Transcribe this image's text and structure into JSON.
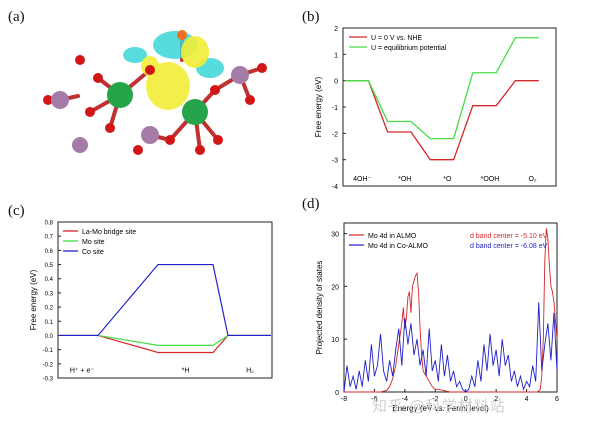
{
  "panel_labels": {
    "a": "(a)",
    "b": "(b)",
    "c": "(c)",
    "d": "(d)"
  },
  "watermark": "知乎 @科学材料站",
  "colors": {
    "red": "#d62728",
    "green": "#2ca02c",
    "green_light": "#44dd44",
    "blue": "#1f1fcc",
    "mo_green": "#26a44a",
    "la_purple": "#a57ba8",
    "o_red": "#d01616",
    "iso_yellow": "#f2ee37",
    "iso_cyan": "#39d6d6"
  },
  "structure_icon": "crystal-structure-charge-density",
  "chart_data": [
    {
      "id": "b",
      "type": "line",
      "ylabel": "Free energy (eV)",
      "ylim": [
        -4,
        2
      ],
      "yticks": [
        "2",
        "1",
        "0",
        "-1",
        "-2",
        "-3",
        "-4"
      ],
      "categories": [
        "4OH⁻",
        "*OH",
        "*O",
        "*OOH",
        "O₂"
      ],
      "legend_position": "top-left",
      "series": [
        {
          "name": "U = 0 V vs. NHE",
          "color": "#d62728",
          "values": [
            0,
            -1.95,
            -3.0,
            -0.95,
            0
          ]
        },
        {
          "name": "U = equilibrium potential",
          "color": "#44dd44",
          "values": [
            0,
            -1.55,
            -2.2,
            0.3,
            1.63
          ]
        }
      ]
    },
    {
      "id": "c",
      "type": "line",
      "ylabel": "Free energy (eV)",
      "ylim": [
        -0.3,
        0.8
      ],
      "yticks": [
        "0.8",
        "0.7",
        "0.6",
        "0.5",
        "0.4",
        "0.3",
        "0.2",
        "0.1",
        "0.0",
        "-0.1",
        "-0.2",
        "-0.3"
      ],
      "categories": [
        "H⁺ + e⁻",
        "*H",
        "H₂"
      ],
      "legend_position": "top-left",
      "series": [
        {
          "name": "La-Mo bridge site",
          "color": "#d62728",
          "values": [
            0,
            -0.12,
            0
          ]
        },
        {
          "name": "Mo site",
          "color": "#44dd44",
          "values": [
            0,
            -0.07,
            0
          ]
        },
        {
          "name": "Co site",
          "color": "#1f1fcc",
          "values": [
            0,
            0.5,
            0
          ]
        }
      ]
    },
    {
      "id": "d",
      "type": "line",
      "xlabel": "Energy (eV vs. Fermi level)",
      "ylabel": "Projected density of states",
      "xlim": [
        -8,
        6
      ],
      "ylim": [
        0,
        32
      ],
      "xticks": [
        "-8",
        "-6",
        "-4",
        "-2",
        "0",
        "2",
        "4",
        "6"
      ],
      "yticks": [
        "30",
        "20",
        "10",
        "0"
      ],
      "legend_position": "top-left",
      "series": [
        {
          "name": "Mo 4d in ALMO",
          "color": "#d62728",
          "annotation": "d band center = -5.10 eV",
          "x": [
            -8,
            -7.5,
            -7,
            -6.5,
            -6,
            -5.6,
            -5.2,
            -5.0,
            -4.8,
            -4.6,
            -4.4,
            -4.2,
            -4.1,
            -4.0,
            -3.9,
            -3.8,
            -3.7,
            -3.6,
            -3.5,
            -3.4,
            -3.3,
            -3.2,
            -3.1,
            -3.0,
            -2.9,
            -2.8,
            -2.6,
            -2.4,
            -2.2,
            -2.0,
            -1.8,
            -1.5,
            -1.0,
            -0.5,
            0,
            0.5,
            1,
            1.5,
            2,
            2.5,
            3,
            3.5,
            4,
            4.3,
            4.5,
            4.7,
            4.9,
            5.0,
            5.1,
            5.2,
            5.3,
            5.4,
            5.5,
            5.6,
            5.7,
            5.8,
            6
          ],
          "y": [
            0,
            0,
            0,
            0,
            0,
            0,
            0.3,
            1,
            2.5,
            5,
            9,
            13,
            16,
            12,
            14,
            18,
            19,
            15,
            20,
            21,
            22,
            22.5,
            19,
            12,
            7,
            4,
            3,
            2,
            1,
            0.5,
            0.5,
            0.3,
            0,
            0,
            0,
            0,
            0,
            0,
            0,
            0,
            0,
            0,
            0,
            0,
            0,
            0,
            0.5,
            3,
            10,
            25,
            31,
            29,
            24,
            20,
            19,
            17,
            10
          ]
        },
        {
          "name": "Mo 4d in Co-ALMO",
          "color": "#1f1fcc",
          "annotation": "d band center = -6.08 eV",
          "x": [
            -8,
            -7.8,
            -7.6,
            -7.4,
            -7.2,
            -7.0,
            -6.8,
            -6.6,
            -6.4,
            -6.2,
            -6.0,
            -5.8,
            -5.6,
            -5.4,
            -5.2,
            -5.0,
            -4.8,
            -4.6,
            -4.4,
            -4.2,
            -4.0,
            -3.8,
            -3.6,
            -3.4,
            -3.2,
            -3.0,
            -2.8,
            -2.6,
            -2.4,
            -2.2,
            -2.0,
            -1.8,
            -1.6,
            -1.4,
            -1.2,
            -1.0,
            -0.8,
            -0.6,
            -0.4,
            -0.2,
            0,
            0.2,
            0.4,
            0.6,
            0.8,
            1.0,
            1.2,
            1.4,
            1.6,
            1.8,
            2.0,
            2.2,
            2.4,
            2.6,
            2.8,
            3.0,
            3.2,
            3.4,
            3.6,
            3.8,
            4.0,
            4.2,
            4.4,
            4.6,
            4.8,
            5.0,
            5.2,
            5.4,
            5.6,
            5.8,
            6.0
          ],
          "y": [
            0,
            5,
            1,
            3,
            0.5,
            4,
            1,
            6,
            2,
            9,
            3,
            5,
            11,
            4,
            2,
            6,
            3,
            8,
            12,
            5,
            14,
            9,
            13,
            7,
            10,
            5,
            8,
            3,
            12,
            4,
            6,
            2,
            9,
            3,
            7,
            2,
            4,
            1,
            2,
            0.5,
            0,
            0.5,
            3,
            1,
            6,
            2,
            9,
            4,
            11,
            5,
            8,
            3,
            10,
            5,
            7,
            2,
            4,
            1,
            3,
            0.5,
            2,
            1,
            5,
            2,
            17,
            4,
            9,
            13,
            6,
            15,
            4
          ]
        }
      ]
    }
  ]
}
